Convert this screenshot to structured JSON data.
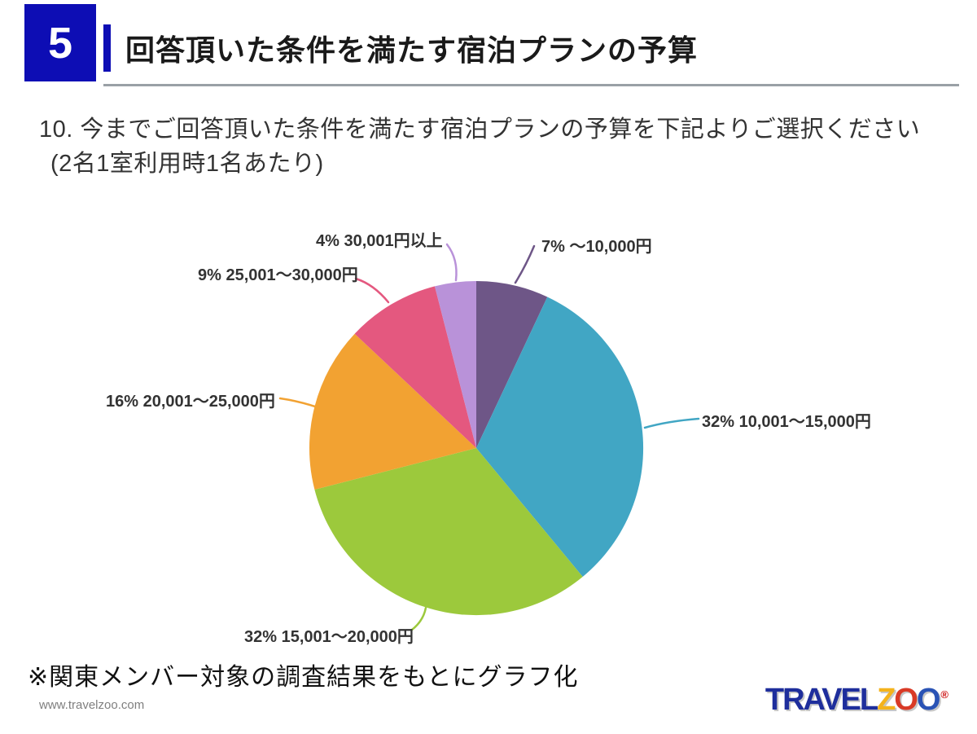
{
  "slide": {
    "page_number": "5",
    "title": "回答頂いた条件を満たす宿泊プランの予算",
    "question_line1": "10. 今までご回答頂いた条件を満たす宿泊プランの予算を下記よりご選択ください",
    "question_line2": "(2名1室利用時1名あたり)",
    "footnote": "※関東メンバー対象の調査結果をもとにグラフ化",
    "website": "www.travelzoo.com",
    "logo": {
      "registered": "®",
      "parts": [
        {
          "text": "TRAVEL",
          "color": "#1e2e9c"
        },
        {
          "text": "Z",
          "color": "#f4b31c"
        },
        {
          "text": "O",
          "color": "#d93a26"
        },
        {
          "text": "O",
          "color": "#2a53b5"
        }
      ]
    }
  },
  "colors": {
    "accent_blue": "#0d0db4",
    "divider_gray": "#9aa0a6",
    "label_text": "#333333"
  },
  "chart_data": {
    "type": "pie",
    "start_angle_deg": 0,
    "direction": "clockwise",
    "unit": "%",
    "slices": [
      {
        "category": "～10,000円",
        "pct": 7,
        "display": "7% ～10,000円",
        "color": "#6e5687"
      },
      {
        "category": "10,001～15,000円",
        "pct": 32,
        "display": "32% 10,001～15,000円",
        "color": "#41a6c4"
      },
      {
        "category": "15,001～20,000円",
        "pct": 32,
        "display": "32% 15,001～20,000円",
        "color": "#9cc93c"
      },
      {
        "category": "20,001～25,000円",
        "pct": 16,
        "display": "16% 20,001～25,000円",
        "color": "#f2a232"
      },
      {
        "category": "25,001～30,000円",
        "pct": 9,
        "display": "9% 25,001～30,000円",
        "color": "#e4587f"
      },
      {
        "category": "30,001円以上",
        "pct": 4,
        "display": "4% 30,001円以上",
        "color": "#b992d9"
      }
    ]
  }
}
